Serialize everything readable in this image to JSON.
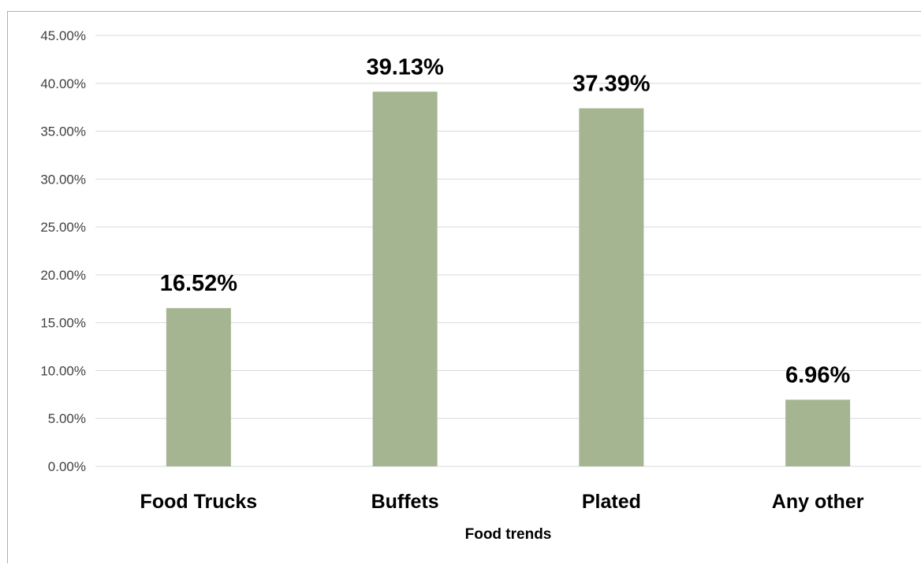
{
  "chart_data": {
    "type": "bar",
    "title": "",
    "xlabel": "Food trends",
    "ylabel": "",
    "categories": [
      "Food Trucks",
      "Buffets",
      "Plated",
      "Any other"
    ],
    "values": [
      16.52,
      39.13,
      37.39,
      6.96
    ],
    "data_labels": [
      "16.52%",
      "39.13%",
      "37.39%",
      "6.96%"
    ],
    "ylim": [
      0,
      45
    ],
    "ytick_values": [
      0,
      5,
      10,
      15,
      20,
      25,
      30,
      35,
      40,
      45
    ],
    "ytick_labels": [
      "0.00%",
      "5.00%",
      "10.00%",
      "15.00%",
      "20.00%",
      "25.00%",
      "30.00%",
      "35.00%",
      "40.00%",
      "45.00%"
    ],
    "grid": true,
    "legend": "none",
    "colors": {
      "bar": "#a5b592",
      "gridline": "#d9d9d9",
      "frame": "#a9b88f"
    }
  }
}
